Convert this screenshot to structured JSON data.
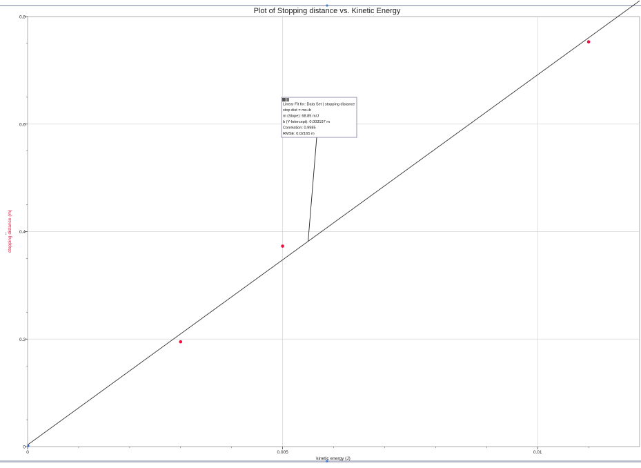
{
  "chart_data": {
    "type": "scatter",
    "title": "Plot of Stopping distance vs. Kinetic Energy",
    "xlabel": "kinetic energy (J)",
    "ylabel": "stopping distance (m)",
    "xlim": [
      0,
      0.012
    ],
    "ylim": [
      0,
      0.8
    ],
    "x_ticks": [
      {
        "value": 0,
        "label": "0"
      },
      {
        "value": 0.005,
        "label": "0.005"
      },
      {
        "value": 0.01,
        "label": "0.01"
      }
    ],
    "y_ticks": [
      {
        "value": 0,
        "label": "0"
      },
      {
        "value": 0.2,
        "label": "0.2"
      },
      {
        "value": 0.4,
        "label": "0.4"
      },
      {
        "value": 0.6,
        "label": "0.6"
      },
      {
        "value": 0.8,
        "label": "0.8"
      }
    ],
    "grid": true,
    "point_color": "#e8103c",
    "series": [
      {
        "points": [
          {
            "x": 0.003,
            "y": 0.195
          },
          {
            "x": 0.005,
            "y": 0.373
          },
          {
            "x": 0.011,
            "y": 0.753
          }
        ]
      }
    ],
    "fit_line": {
      "slope": 68.85,
      "intercept": 0.003197,
      "x_range": [
        0,
        0.012
      ],
      "color": "#333333"
    },
    "annotation": {
      "lines": [
        "Linear Fit for: Data Set | stopping distance",
        "stop dist = mx+b",
        "m (Slope): 68.85 m/J",
        "b (Y-Intercept): 0.003197 m",
        "Correlation: 0.9985",
        "RMSE: 0.02165 m"
      ],
      "anchor": {
        "x": 0.0055,
        "y": 0.382
      }
    }
  }
}
